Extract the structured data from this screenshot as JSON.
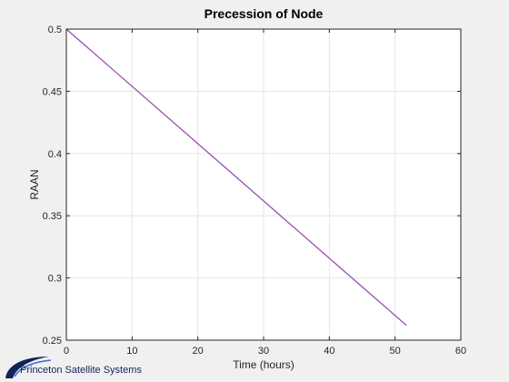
{
  "chart_data": {
    "type": "line",
    "title": "Precession of Node",
    "xlabel": "Time (hours)",
    "ylabel": "RAAN",
    "xlim": [
      0,
      60
    ],
    "ylim": [
      0.25,
      0.5
    ],
    "xticks": [
      "0",
      "10",
      "20",
      "30",
      "40",
      "50",
      "60"
    ],
    "yticks": [
      "0.25",
      "0.3",
      "0.35",
      "0.4",
      "0.45",
      "0.5"
    ],
    "grid": true,
    "series": [
      {
        "color": "#2a3fd1",
        "x": [
          0,
          51.7
        ],
        "y": [
          0.5,
          0.262
        ]
      },
      {
        "color": "#e0508a",
        "x": [
          0,
          51.7
        ],
        "y": [
          0.5,
          0.262
        ]
      }
    ]
  },
  "logo": {
    "text": "Princeton Satellite Systems",
    "color": "#10245a"
  }
}
